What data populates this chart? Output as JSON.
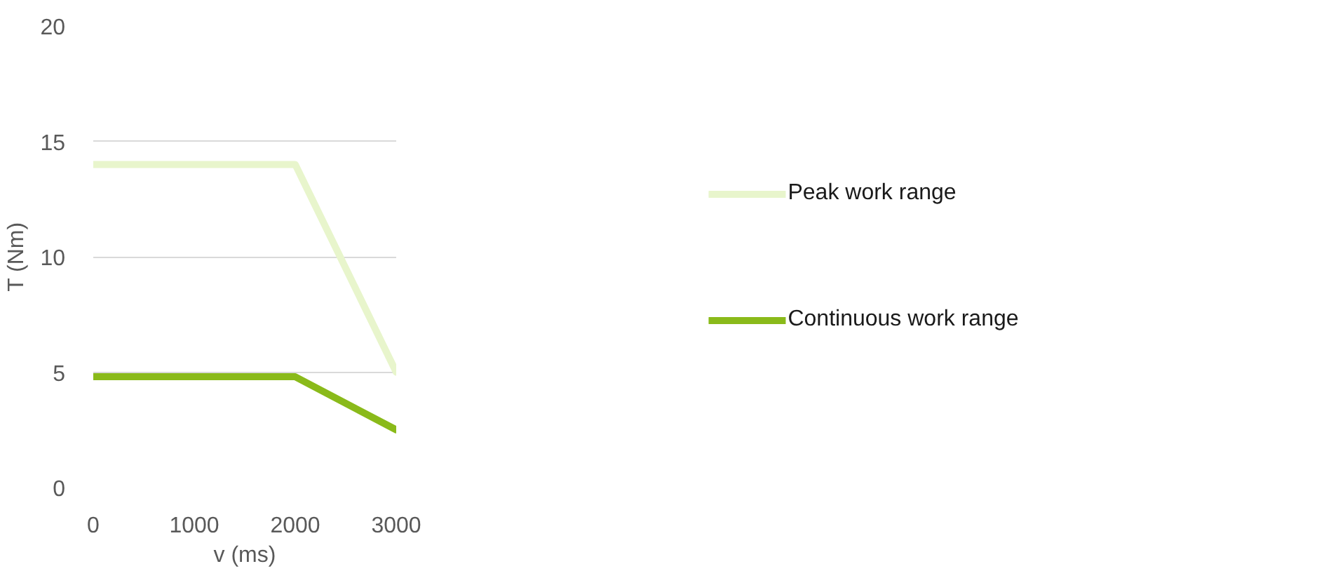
{
  "chart_data": {
    "type": "line",
    "xlabel": "v (ms)",
    "ylabel": "T (Nm)",
    "x": [
      0,
      2000,
      3000
    ],
    "series": [
      {
        "name": "Peak work range",
        "color": "#e8f5cc",
        "values": [
          14,
          14,
          5
        ]
      },
      {
        "name": "Continuous work range",
        "color": "#8aba1a",
        "values": [
          4.8,
          4.8,
          2.5
        ]
      }
    ],
    "xlim": [
      0,
      3000
    ],
    "xticks": [
      0,
      1000,
      2000,
      3000
    ],
    "ylim": [
      0,
      20
    ],
    "yticks": [
      0,
      5,
      10,
      15,
      20
    ],
    "grid": "y",
    "legend": "right",
    "line_style": "solid",
    "marker": "none"
  }
}
